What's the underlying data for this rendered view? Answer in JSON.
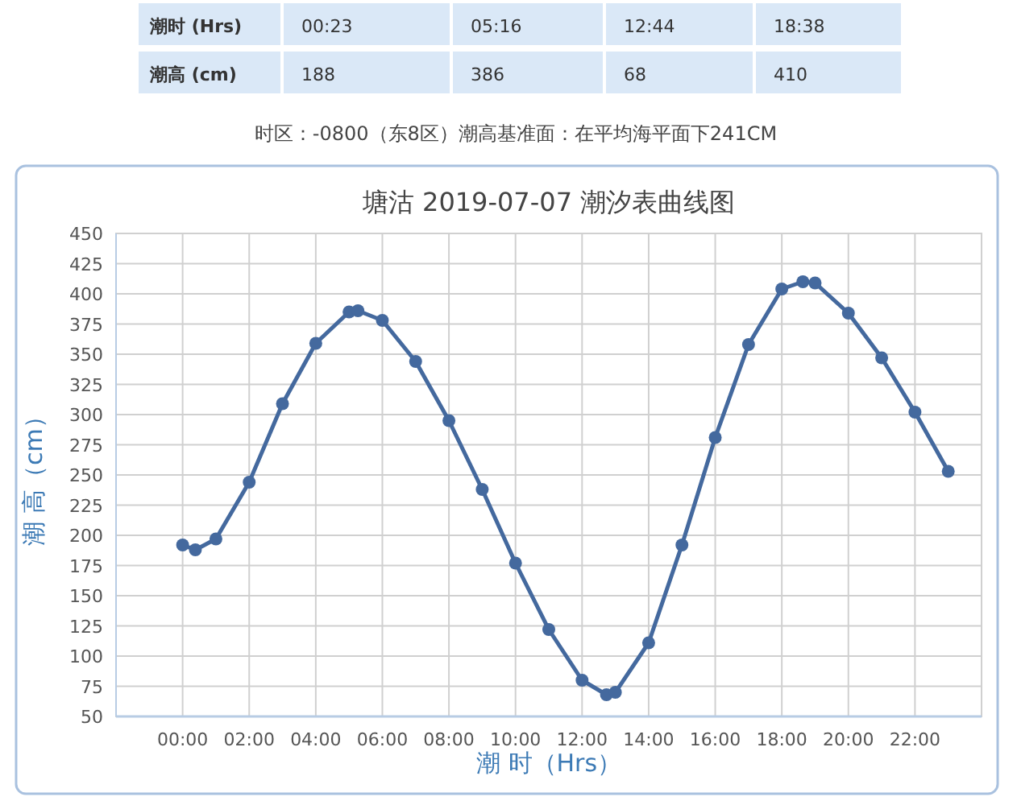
{
  "chart_data": {
    "type": "line",
    "title": "塘沽 2019-07-07 潮汐表曲线图",
    "xlabel": "潮 时（Hrs）",
    "ylabel": "潮 高（cm）",
    "annotations": [
      "潮时 (Hrs)",
      "00:23",
      "05:16",
      "12:44",
      "18:38",
      "潮高 (cm)",
      "188",
      "386",
      "68",
      "410",
      "时区：-0800（东8区）潮高基准面：在平均海平面下241CM"
    ],
    "xlim": [
      -2,
      24
    ],
    "xticks": [
      {
        "value": 0,
        "label": "00:00"
      },
      {
        "value": 2,
        "label": "02:00"
      },
      {
        "value": 4,
        "label": "04:00"
      },
      {
        "value": 6,
        "label": "06:00"
      },
      {
        "value": 8,
        "label": "08:00"
      },
      {
        "value": 10,
        "label": "10:00"
      },
      {
        "value": 12,
        "label": "12:00"
      },
      {
        "value": 14,
        "label": "14:00"
      },
      {
        "value": 16,
        "label": "16:00"
      },
      {
        "value": 18,
        "label": "18:00"
      },
      {
        "value": 20,
        "label": "20:00"
      },
      {
        "value": 22,
        "label": "22:00"
      }
    ],
    "ylim": [
      50,
      450
    ],
    "yticks": [
      50,
      75,
      100,
      125,
      150,
      175,
      200,
      225,
      250,
      275,
      300,
      325,
      350,
      375,
      400,
      425,
      450
    ],
    "grid": true,
    "marker": "circle",
    "line_style": "solid",
    "series": [
      {
        "color": "#44699e",
        "x": [
          0,
          0.383,
          1,
          2,
          3,
          4,
          5,
          5.267,
          6,
          7,
          8,
          9,
          10,
          11,
          12,
          12.733,
          13,
          14,
          15,
          16,
          17,
          18,
          18.633,
          19,
          20,
          21,
          22,
          23
        ],
        "values": [
          192,
          188,
          197,
          244,
          309,
          359,
          385,
          386,
          378,
          344,
          295,
          238,
          177,
          122,
          80,
          68,
          70,
          111,
          192,
          281,
          358,
          404,
          410,
          409,
          384,
          347,
          302,
          253
        ]
      }
    ]
  }
}
